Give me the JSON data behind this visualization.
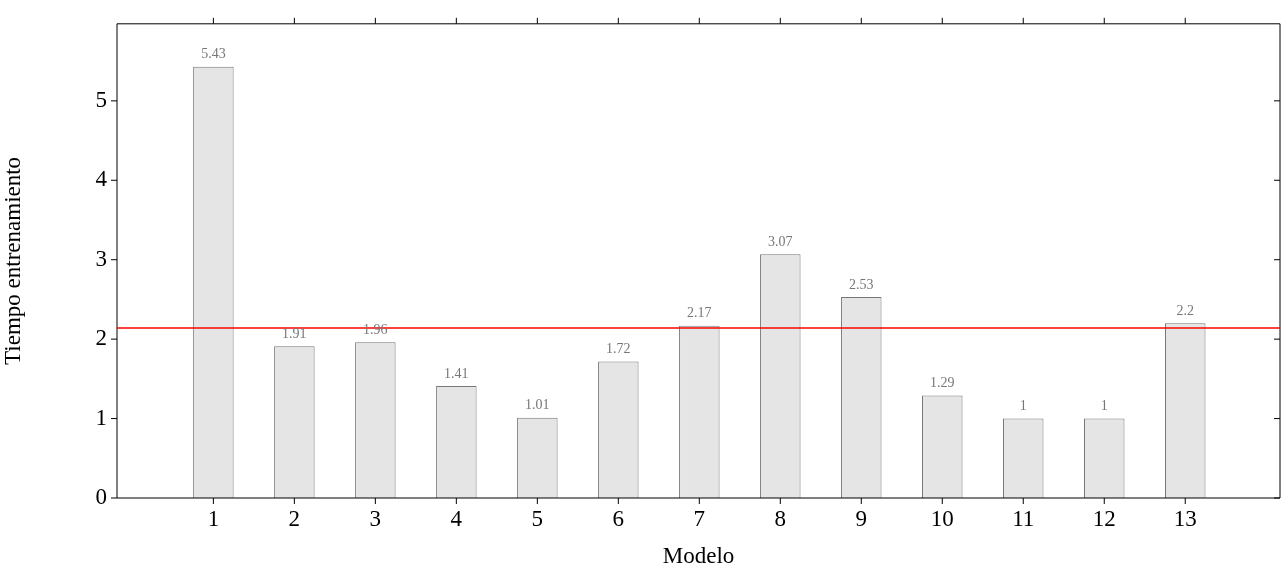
{
  "chart_data": {
    "type": "bar",
    "xlabel": "Modelo",
    "ylabel": "Tiempo entrenamiento",
    "x": [
      1,
      2,
      3,
      4,
      5,
      6,
      7,
      8,
      9,
      10,
      11,
      12,
      13
    ],
    "values": [
      5.43,
      1.91,
      1.96,
      1.41,
      1.01,
      1.72,
      2.17,
      3.07,
      2.53,
      1.29,
      1,
      1,
      2.2
    ],
    "color": "#e5e5e5",
    "xlim": [
      -0.19,
      14.17
    ],
    "xticks": [
      1,
      2,
      3,
      4,
      5,
      6,
      7,
      8,
      9,
      10,
      11,
      12,
      13
    ],
    "ylim": [
      0,
      5.97
    ],
    "yticks": [
      0,
      1,
      2,
      3,
      4,
      5
    ],
    "ref_lines": [
      {
        "axis": "y",
        "value": 2.14,
        "color": "#ff0000"
      }
    ],
    "data_labels": true,
    "grid": false,
    "legend": false
  }
}
